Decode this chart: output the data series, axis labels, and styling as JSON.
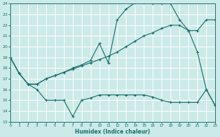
{
  "xlabel": "Humidex (Indice chaleur)",
  "bg_color": "#cceae8",
  "grid_color": "#ffffff",
  "line_color": "#1a6e6a",
  "x_min": 0,
  "x_max": 23,
  "y_min": 13,
  "y_max": 24,
  "line_top_x": [
    0,
    1,
    2,
    3,
    4,
    5,
    6,
    7,
    8,
    9,
    10,
    11,
    12,
    13,
    14,
    15,
    16,
    17,
    18,
    19,
    20,
    21,
    22,
    23
  ],
  "line_top_y": [
    19.0,
    17.5,
    16.5,
    16.5,
    17.0,
    17.3,
    17.6,
    18.0,
    18.3,
    18.7,
    20.3,
    18.5,
    22.5,
    23.5,
    24.1,
    24.1,
    24.0,
    24.0,
    24.0,
    22.5,
    21.5,
    19.5,
    16.0,
    14.5
  ],
  "line_mid_x": [
    0,
    1,
    2,
    3,
    4,
    5,
    6,
    7,
    8,
    9,
    10,
    11,
    12,
    13,
    14,
    15,
    16,
    17,
    18,
    19,
    20,
    21,
    22,
    23
  ],
  "line_mid_y": [
    19.0,
    17.5,
    16.5,
    16.5,
    17.0,
    17.3,
    17.6,
    17.9,
    18.2,
    18.5,
    18.8,
    19.1,
    19.5,
    20.0,
    20.5,
    21.0,
    21.3,
    21.7,
    22.0,
    22.0,
    21.5,
    21.5,
    22.5,
    22.5
  ],
  "line_bot_x": [
    0,
    1,
    2,
    3,
    4,
    5,
    6,
    7,
    8,
    9,
    10,
    11,
    12,
    13,
    14,
    15,
    16,
    17,
    18,
    19,
    20,
    21,
    22,
    23
  ],
  "line_bot_y": [
    19.0,
    17.5,
    16.5,
    16.0,
    15.0,
    15.0,
    15.0,
    13.5,
    15.0,
    15.2,
    15.5,
    15.5,
    15.5,
    15.5,
    15.5,
    15.5,
    15.3,
    15.0,
    14.8,
    14.8,
    14.8,
    14.8,
    16.0,
    14.5
  ]
}
